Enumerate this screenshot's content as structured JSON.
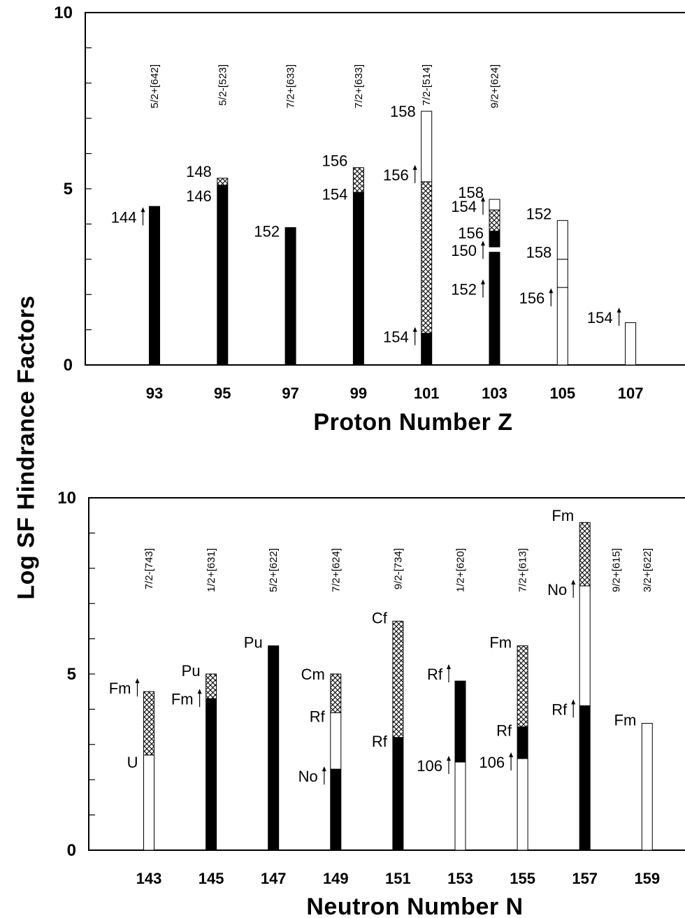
{
  "y_axis_title": "Log SF Hindrance Factors",
  "colors": {
    "ink": "#000000",
    "background": "#ffffff"
  },
  "chart_data": [
    {
      "type": "bar",
      "id": "proton",
      "xlabel": "Proton Number Z",
      "ylim": [
        0,
        10
      ],
      "yticks": [
        "0",
        "5",
        "10"
      ],
      "categories": [
        "93",
        "95",
        "97",
        "99",
        "101",
        "103",
        "105",
        "107"
      ],
      "orbitals": [
        "5/2+[642]",
        "5/2-[523]",
        "7/2+[633]",
        "7/2+[633]",
        "7/2-[514]",
        "9/2+[624]",
        "",
        ""
      ],
      "bars": [
        {
          "cat": 0,
          "segments": [
            {
              "from": 0,
              "to": 4.5,
              "fill": "solid"
            }
          ],
          "labels": [
            {
              "text": "144",
              "y": 4.2,
              "arrow": true
            }
          ]
        },
        {
          "cat": 1,
          "segments": [
            {
              "from": 0,
              "to": 5.1,
              "fill": "solid"
            },
            {
              "from": 5.1,
              "to": 5.3,
              "fill": "hatch"
            }
          ],
          "labels": [
            {
              "text": "148",
              "y": 5.5,
              "arrow": false
            },
            {
              "text": "146",
              "y": 4.8,
              "arrow": false
            }
          ]
        },
        {
          "cat": 2,
          "segments": [
            {
              "from": 0,
              "to": 3.9,
              "fill": "solid"
            }
          ],
          "labels": [
            {
              "text": "152",
              "y": 3.8,
              "arrow": false
            }
          ]
        },
        {
          "cat": 3,
          "segments": [
            {
              "from": 0,
              "to": 4.9,
              "fill": "solid"
            },
            {
              "from": 4.9,
              "to": 5.6,
              "fill": "hatch"
            }
          ],
          "labels": [
            {
              "text": "156",
              "y": 5.8,
              "arrow": false
            },
            {
              "text": "154",
              "y": 4.85,
              "arrow": false
            }
          ]
        },
        {
          "cat": 4,
          "segments": [
            {
              "from": 0,
              "to": 0.9,
              "fill": "solid"
            },
            {
              "from": 0.9,
              "to": 5.2,
              "fill": "hatch"
            },
            {
              "from": 5.2,
              "to": 7.2,
              "fill": "open"
            }
          ],
          "labels": [
            {
              "text": "158",
              "y": 7.2,
              "arrow": false
            },
            {
              "text": "156",
              "y": 5.4,
              "arrow": true
            },
            {
              "text": "154",
              "y": 0.8,
              "arrow": true
            }
          ]
        },
        {
          "cat": 5,
          "segments": [
            {
              "from": 0,
              "to": 3.2,
              "fill": "solid"
            },
            {
              "from": 3.35,
              "to": 3.8,
              "fill": "solid"
            },
            {
              "from": 3.8,
              "to": 4.4,
              "fill": "hatch"
            },
            {
              "from": 4.4,
              "to": 4.7,
              "fill": "open"
            }
          ],
          "labels": [
            {
              "text": "158",
              "y": 4.9,
              "arrow": false
            },
            {
              "text": "154",
              "y": 4.5,
              "arrow": true
            },
            {
              "text": "156",
              "y": 3.75,
              "arrow": false
            },
            {
              "text": "150",
              "y": 3.25,
              "arrow": true
            },
            {
              "text": "152",
              "y": 2.15,
              "arrow": true
            }
          ]
        },
        {
          "cat": 6,
          "segments": [
            {
              "from": 0,
              "to": 2.2,
              "fill": "open"
            },
            {
              "from": 2.2,
              "to": 3.0,
              "fill": "open"
            },
            {
              "from": 3.0,
              "to": 4.1,
              "fill": "open"
            }
          ],
          "labels": [
            {
              "text": "152",
              "y": 4.3,
              "arrow": false
            },
            {
              "text": "158",
              "y": 3.2,
              "arrow": false
            },
            {
              "text": "156",
              "y": 1.9,
              "arrow": true
            }
          ]
        },
        {
          "cat": 7,
          "segments": [
            {
              "from": 0,
              "to": 1.2,
              "fill": "open"
            }
          ],
          "labels": [
            {
              "text": "154",
              "y": 1.35,
              "arrow": true
            }
          ]
        }
      ]
    },
    {
      "type": "bar",
      "id": "neutron",
      "xlabel": "Neutron Number N",
      "ylim": [
        0,
        10
      ],
      "yticks": [
        "0",
        "5",
        "10"
      ],
      "categories": [
        "143",
        "145",
        "147",
        "149",
        "151",
        "153",
        "155",
        "157",
        "159"
      ],
      "orbitals": [
        "7/2-[743]",
        "1/2+[631]",
        "5/2+[622]",
        "7/2+[624]",
        "9/2-[734]",
        "1/2+[620]",
        "7/2+[613]",
        "",
        "3/2+[622]"
      ],
      "extra_orbitals": [
        {
          "text": "9/2+[615]",
          "between": [
            7,
            8
          ]
        }
      ],
      "bars": [
        {
          "cat": 0,
          "segments": [
            {
              "from": 0,
              "to": 2.7,
              "fill": "open"
            },
            {
              "from": 2.7,
              "to": 4.5,
              "fill": "hatch"
            }
          ],
          "labels": [
            {
              "text": "Fm",
              "y": 4.6,
              "arrow": true
            },
            {
              "text": "U",
              "y": 2.5,
              "arrow": false
            }
          ]
        },
        {
          "cat": 1,
          "segments": [
            {
              "from": 0,
              "to": 4.3,
              "fill": "solid"
            },
            {
              "from": 4.3,
              "to": 5.0,
              "fill": "hatch"
            }
          ],
          "labels": [
            {
              "text": "Pu",
              "y": 5.1,
              "arrow": false
            },
            {
              "text": "Fm",
              "y": 4.3,
              "arrow": true
            }
          ]
        },
        {
          "cat": 2,
          "segments": [
            {
              "from": 0,
              "to": 5.8,
              "fill": "solid"
            }
          ],
          "labels": [
            {
              "text": "Pu",
              "y": 5.9,
              "arrow": false
            }
          ]
        },
        {
          "cat": 3,
          "segments": [
            {
              "from": 0,
              "to": 2.3,
              "fill": "solid"
            },
            {
              "from": 2.3,
              "to": 3.9,
              "fill": "open"
            },
            {
              "from": 3.9,
              "to": 5.0,
              "fill": "hatch"
            }
          ],
          "labels": [
            {
              "text": "Cm",
              "y": 5.0,
              "arrow": false
            },
            {
              "text": "Rf",
              "y": 3.8,
              "arrow": false
            },
            {
              "text": "No",
              "y": 2.1,
              "arrow": true
            }
          ]
        },
        {
          "cat": 4,
          "segments": [
            {
              "from": 0,
              "to": 3.2,
              "fill": "solid"
            },
            {
              "from": 3.2,
              "to": 6.5,
              "fill": "hatch"
            }
          ],
          "labels": [
            {
              "text": "Cf",
              "y": 6.6,
              "arrow": false
            },
            {
              "text": "Rf",
              "y": 3.1,
              "arrow": false
            }
          ]
        },
        {
          "cat": 5,
          "segments": [
            {
              "from": 0,
              "to": 2.5,
              "fill": "open"
            },
            {
              "from": 2.5,
              "to": 4.8,
              "fill": "solid"
            }
          ],
          "labels": [
            {
              "text": "Rf",
              "y": 5.0,
              "arrow": true
            },
            {
              "text": "106",
              "y": 2.4,
              "arrow": true
            }
          ]
        },
        {
          "cat": 6,
          "segments": [
            {
              "from": 0,
              "to": 2.6,
              "fill": "open"
            },
            {
              "from": 2.6,
              "to": 3.5,
              "fill": "solid"
            },
            {
              "from": 3.5,
              "to": 5.8,
              "fill": "hatch"
            }
          ],
          "labels": [
            {
              "text": "Fm",
              "y": 5.9,
              "arrow": false
            },
            {
              "text": "Rf",
              "y": 3.4,
              "arrow": false
            },
            {
              "text": "106",
              "y": 2.5,
              "arrow": true
            }
          ]
        },
        {
          "cat": 7,
          "segments": [
            {
              "from": 0,
              "to": 4.1,
              "fill": "solid"
            },
            {
              "from": 4.1,
              "to": 7.5,
              "fill": "open"
            },
            {
              "from": 7.5,
              "to": 9.3,
              "fill": "hatch"
            }
          ],
          "labels": [
            {
              "text": "Fm",
              "y": 9.5,
              "arrow": false
            },
            {
              "text": "No",
              "y": 7.4,
              "arrow": true
            },
            {
              "text": "Rf",
              "y": 4.0,
              "arrow": true
            }
          ]
        },
        {
          "cat": 8,
          "segments": [
            {
              "from": 0,
              "to": 3.6,
              "fill": "open"
            }
          ],
          "labels": [
            {
              "text": "Fm",
              "y": 3.7,
              "arrow": false
            }
          ]
        }
      ]
    }
  ]
}
